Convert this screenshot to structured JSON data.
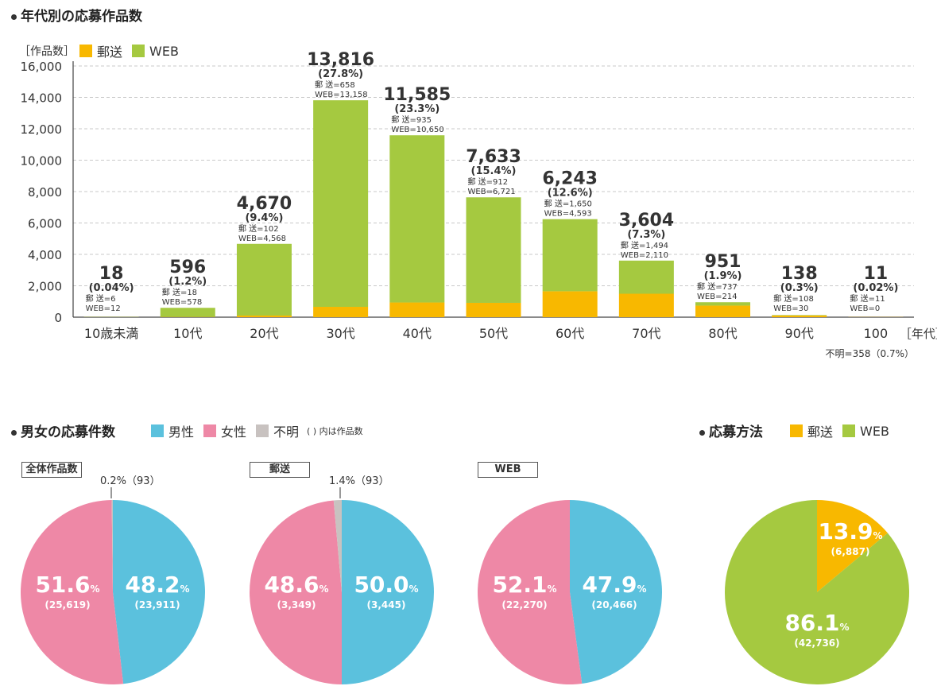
{
  "colors": {
    "mail": "#f8b800",
    "web": "#a5c940",
    "male": "#5bc1dd",
    "female": "#ee88a6",
    "unknown": "#c8c2c0",
    "grid": "#c9c9c9"
  },
  "age_section": {
    "title": "年代別の応募作品数",
    "unit_label": "［作品数］",
    "legend_mail": "郵送",
    "legend_web": "WEB",
    "x_unit": "［年代］",
    "unknown_note": "不明=358（0.7%）"
  },
  "gender_section": {
    "title": "男女の応募件数",
    "legend_male": "男性",
    "legend_female": "女性",
    "legend_unknown": "不明",
    "legend_note": "( ) 内は作品数",
    "pies": [
      {
        "label": "全体作品数",
        "male_pct": "48.2",
        "male_count": "(23,911)",
        "female_pct": "51.6",
        "female_count": "(25,619)",
        "unknown_label": "0.2%（93）"
      },
      {
        "label": "郵送",
        "male_pct": "50.0",
        "male_count": "(3,445)",
        "female_pct": "48.6",
        "female_count": "(3,349)",
        "unknown_label": "1.4%（93）"
      },
      {
        "label": "WEB",
        "male_pct": "47.9",
        "male_count": "(20,466)",
        "female_pct": "52.1",
        "female_count": "(22,270)"
      }
    ],
    "pct_unit": "%"
  },
  "method_section": {
    "title": "応募方法",
    "legend_mail": "郵送",
    "legend_web": "WEB",
    "mail_pct": "13.9",
    "mail_count": "(6,887)",
    "web_pct": "86.1",
    "web_count": "(42,736)",
    "pct_unit": "%"
  },
  "chart_data": [
    {
      "type": "bar",
      "stacked": true,
      "title": "年代別の応募作品数",
      "ylabel": "［作品数］",
      "xlabel": "［年代］",
      "ylim": [
        0,
        16000
      ],
      "yticks": [
        "0",
        "2,000",
        "4,000",
        "6,000",
        "8,000",
        "10,000",
        "12,000",
        "14,000",
        "16,000"
      ],
      "grid": true,
      "legend": "top-left",
      "categories": [
        "10歳未満",
        "10代",
        "20代",
        "30代",
        "40代",
        "50代",
        "60代",
        "70代",
        "80代",
        "90代",
        "100"
      ],
      "series": [
        {
          "name": "郵送",
          "values": [
            6,
            18,
            102,
            658,
            935,
            912,
            1650,
            1494,
            737,
            108,
            11
          ]
        },
        {
          "name": "WEB",
          "values": [
            12,
            578,
            4568,
            13158,
            10650,
            6721,
            4593,
            2110,
            214,
            30,
            0
          ]
        }
      ],
      "total_labels": [
        "18",
        "596",
        "4,670",
        "13,816",
        "11,585",
        "7,633",
        "6,243",
        "3,604",
        "951",
        "138",
        "11"
      ],
      "pct_labels": [
        "(0.04%)",
        "(1.2%)",
        "(9.4%)",
        "(27.8%)",
        "(23.3%)",
        "(15.4%)",
        "(12.6%)",
        "(7.3%)",
        "(1.9%)",
        "(0.3%)",
        "(0.02%)"
      ],
      "mail_labels": [
        "郵 送=6",
        "郵 送=18",
        "郵 送=102",
        "郵 送=658",
        "郵 送=935",
        "郵 送=912",
        "郵 送=1,650",
        "郵 送=1,494",
        "郵 送=737",
        "郵 送=108",
        "郵 送=11"
      ],
      "web_labels": [
        "WEB=12",
        "WEB=578",
        "WEB=4,568",
        "WEB=13,158",
        "WEB=10,650",
        "WEB=6,721",
        "WEB=4,593",
        "WEB=2,110",
        "WEB=214",
        "WEB=30",
        "WEB=0"
      ]
    },
    {
      "type": "pie",
      "title": "全体作品数",
      "labels": [
        "男性",
        "女性",
        "不明"
      ],
      "values": [
        48.2,
        51.6,
        0.2
      ],
      "counts": [
        23911,
        25619,
        93
      ]
    },
    {
      "type": "pie",
      "title": "郵送",
      "labels": [
        "男性",
        "女性",
        "不明"
      ],
      "values": [
        50.0,
        48.6,
        1.4
      ],
      "counts": [
        3445,
        3349,
        93
      ]
    },
    {
      "type": "pie",
      "title": "WEB",
      "labels": [
        "男性",
        "女性"
      ],
      "values": [
        47.9,
        52.1
      ],
      "counts": [
        20466,
        22270
      ]
    },
    {
      "type": "pie",
      "title": "応募方法",
      "labels": [
        "郵送",
        "WEB"
      ],
      "values": [
        13.9,
        86.1
      ],
      "counts": [
        6887,
        42736
      ]
    }
  ]
}
